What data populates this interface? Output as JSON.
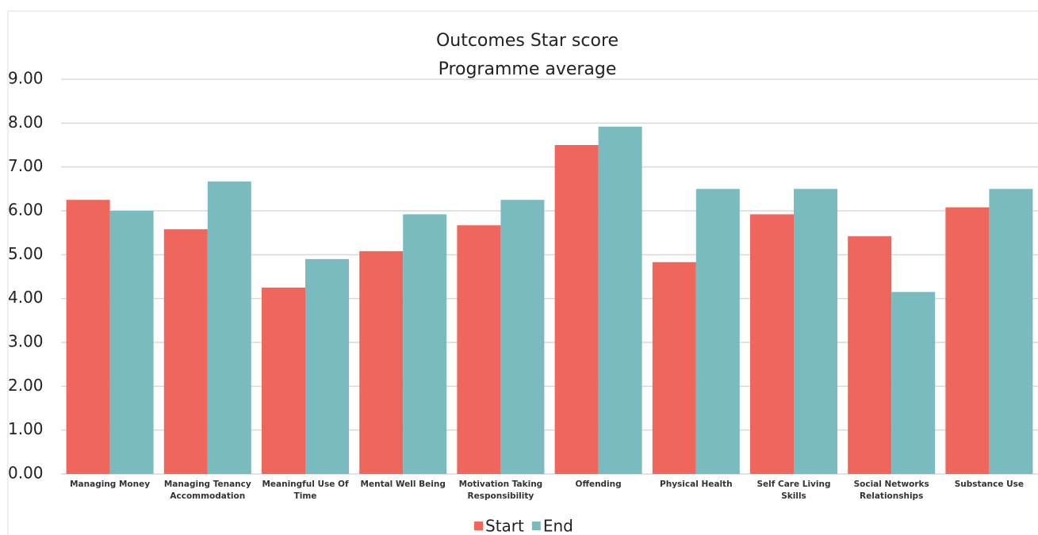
{
  "chart_data": {
    "type": "bar",
    "title": "Outcomes Star score",
    "subtitle": "Programme average",
    "categories": [
      "Managing Money",
      "Managing Tenancy Accommodation",
      "Meaningful Use Of Time",
      "Mental Well Being",
      "Motivation Taking Responsibility",
      "Offending",
      "Physical Health",
      "Self Care Living Skills",
      "Social Networks Relationships",
      "Substance Use"
    ],
    "series": [
      {
        "name": "Start",
        "color": "#ee665c",
        "values": [
          6.25,
          5.58,
          4.25,
          5.08,
          5.67,
          7.5,
          4.83,
          5.92,
          5.42,
          6.08
        ]
      },
      {
        "name": "End",
        "color": "#7abbc0",
        "values": [
          6.0,
          6.67,
          4.9,
          5.92,
          6.25,
          7.92,
          6.5,
          6.5,
          4.15,
          6.5
        ]
      }
    ],
    "ylim": [
      0,
      9
    ],
    "yticks": [
      {
        "value": 0,
        "label": "0.00"
      },
      {
        "value": 1,
        "label": "1.00"
      },
      {
        "value": 2,
        "label": "2.00"
      },
      {
        "value": 3,
        "label": "3.00"
      },
      {
        "value": 4,
        "label": "4.00"
      },
      {
        "value": 5,
        "label": "5.00"
      },
      {
        "value": 6,
        "label": "6.00"
      },
      {
        "value": 7,
        "label": "7.00"
      },
      {
        "value": 8,
        "label": "8.00"
      },
      {
        "value": 9,
        "label": "9.00"
      }
    ],
    "grid": true,
    "legend": "bottom"
  }
}
